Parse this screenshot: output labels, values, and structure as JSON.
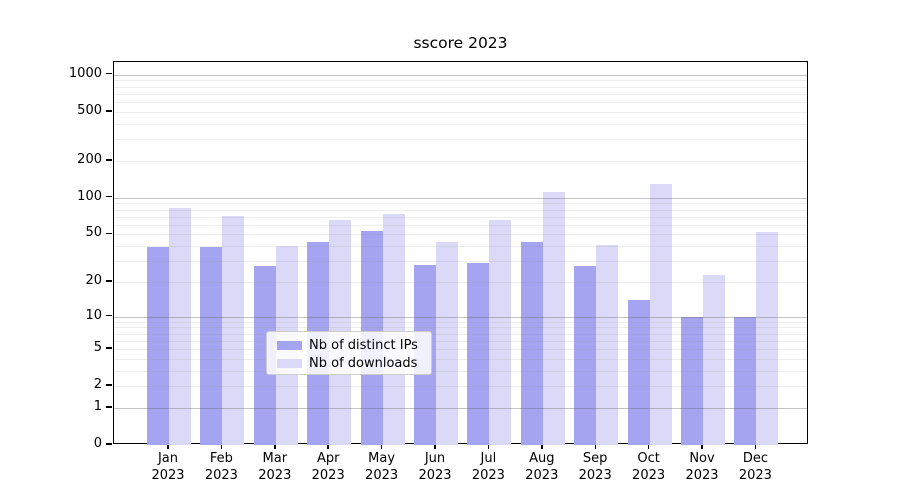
{
  "title": "sscore 2023",
  "chart_data": {
    "type": "bar",
    "title": "sscore 2023",
    "categories": [
      "Jan",
      "Feb",
      "Mar",
      "Apr",
      "May",
      "Jun",
      "Jul",
      "Aug",
      "Sep",
      "Oct",
      "Nov",
      "Dec"
    ],
    "category_year": "2023",
    "series": [
      {
        "name": "Nb of distinct IPs",
        "color": "#a4a4f0",
        "values": [
          39,
          39,
          27,
          43,
          53,
          28,
          29,
          43,
          27,
          14,
          10,
          10
        ]
      },
      {
        "name": "Nb of downloads",
        "color": "#dadaf8",
        "values": [
          82,
          71,
          40,
          66,
          73,
          43,
          66,
          112,
          41,
          130,
          23,
          52
        ]
      }
    ],
    "xlabel": "",
    "ylabel": "",
    "yscale": "symlog (position proportional to ln(1+value))",
    "y_tick_labels": [
      0,
      1,
      2,
      5,
      10,
      20,
      50,
      100,
      200,
      500,
      1000
    ],
    "y_minor_gridlines": [
      2,
      3,
      4,
      5,
      6,
      7,
      8,
      9,
      20,
      30,
      40,
      50,
      60,
      70,
      80,
      90,
      200,
      300,
      400,
      500,
      600,
      700,
      800,
      900
    ],
    "y_major_gridlines": [
      1,
      10,
      100,
      1000
    ],
    "ylim": [
      0,
      1270
    ],
    "grid": "on",
    "legend_position": "bottom-center",
    "colors": {
      "background": "#ffffff",
      "axis": "#000000",
      "major_grid": "#c6c6c6",
      "minor_grid": "#ebebeb",
      "legend_border": "#cccccc"
    }
  }
}
